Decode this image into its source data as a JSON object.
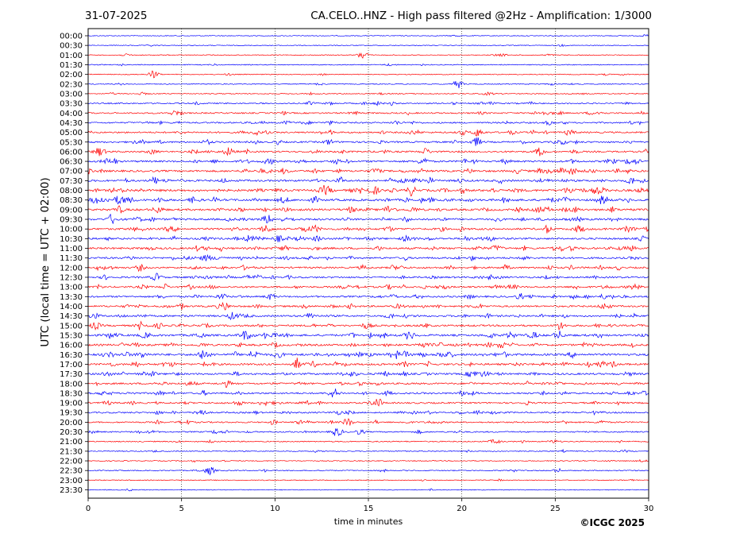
{
  "header": {
    "date": "31-07-2025",
    "title": "CA.CELO..HNZ - High pass filtered @2Hz - Amplification: 1/3000"
  },
  "footer": {
    "copyright": "©ICGC 2025"
  },
  "chart_data": {
    "type": "line",
    "title": "CA.CELO..HNZ - High pass filtered @2Hz - Amplification: 1/3000",
    "xlabel": "time in minutes",
    "ylabel": "UTC (local time = UTC + 02:00)",
    "xlim": [
      0,
      30
    ],
    "x_ticks": [
      "0",
      "5",
      "10",
      "15",
      "20",
      "25",
      "30"
    ],
    "x_gridlines": [
      5,
      10,
      15,
      20,
      25
    ],
    "grid": "vertical dotted",
    "colors": {
      "odd_trace": "#ff0000",
      "even_trace": "#0000ff",
      "axes": "#000000"
    },
    "rows": [
      "00:00",
      "00:30",
      "01:00",
      "01:30",
      "02:00",
      "02:30",
      "03:00",
      "03:30",
      "04:00",
      "04:30",
      "05:00",
      "05:30",
      "06:00",
      "06:30",
      "07:00",
      "07:30",
      "08:00",
      "08:30",
      "09:00",
      "09:30",
      "10:00",
      "10:30",
      "11:00",
      "11:30",
      "12:00",
      "12:30",
      "13:00",
      "13:30",
      "14:00",
      "14:30",
      "15:00",
      "15:30",
      "16:00",
      "16:30",
      "17:00",
      "17:30",
      "18:00",
      "18:30",
      "19:00",
      "19:30",
      "20:00",
      "20:30",
      "21:00",
      "21:30",
      "22:00",
      "22:30",
      "23:00",
      "23:30"
    ],
    "trace_colors": [
      "blue",
      "blue",
      "red",
      "blue",
      "red",
      "blue",
      "red",
      "blue",
      "red",
      "blue",
      "red",
      "blue",
      "red",
      "blue",
      "red",
      "blue",
      "red",
      "blue",
      "red",
      "blue",
      "red",
      "blue",
      "red",
      "blue",
      "red",
      "blue",
      "red",
      "blue",
      "red",
      "blue",
      "red",
      "blue",
      "red",
      "blue",
      "red",
      "blue",
      "red",
      "blue",
      "red",
      "blue",
      "red",
      "blue",
      "red",
      "blue",
      "red",
      "blue",
      "red",
      "blue"
    ],
    "activity_level": [
      0.05,
      0.05,
      0.1,
      0.1,
      0.1,
      0.1,
      0.15,
      0.3,
      0.35,
      0.4,
      0.45,
      0.45,
      0.5,
      0.55,
      0.6,
      0.6,
      0.75,
      0.7,
      0.65,
      0.6,
      0.6,
      0.55,
      0.6,
      0.55,
      0.5,
      0.5,
      0.5,
      0.5,
      0.5,
      0.55,
      0.55,
      0.65,
      0.6,
      0.7,
      0.6,
      0.55,
      0.5,
      0.5,
      0.45,
      0.4,
      0.35,
      0.3,
      0.2,
      0.15,
      0.1,
      0.15,
      0.08,
      0.05
    ],
    "notable_events": [
      {
        "row": "01:00",
        "minute": 14.7
      },
      {
        "row": "02:00",
        "minute": 3.5
      },
      {
        "row": "02:30",
        "minute": 19.8
      },
      {
        "row": "15:30",
        "minute": 17.2
      },
      {
        "row": "19:30",
        "minute": 6.0
      },
      {
        "row": "20:00",
        "minute": 13.9
      },
      {
        "row": "20:30",
        "minute": 13.3
      },
      {
        "row": "22:30",
        "minute": 6.5
      }
    ]
  }
}
